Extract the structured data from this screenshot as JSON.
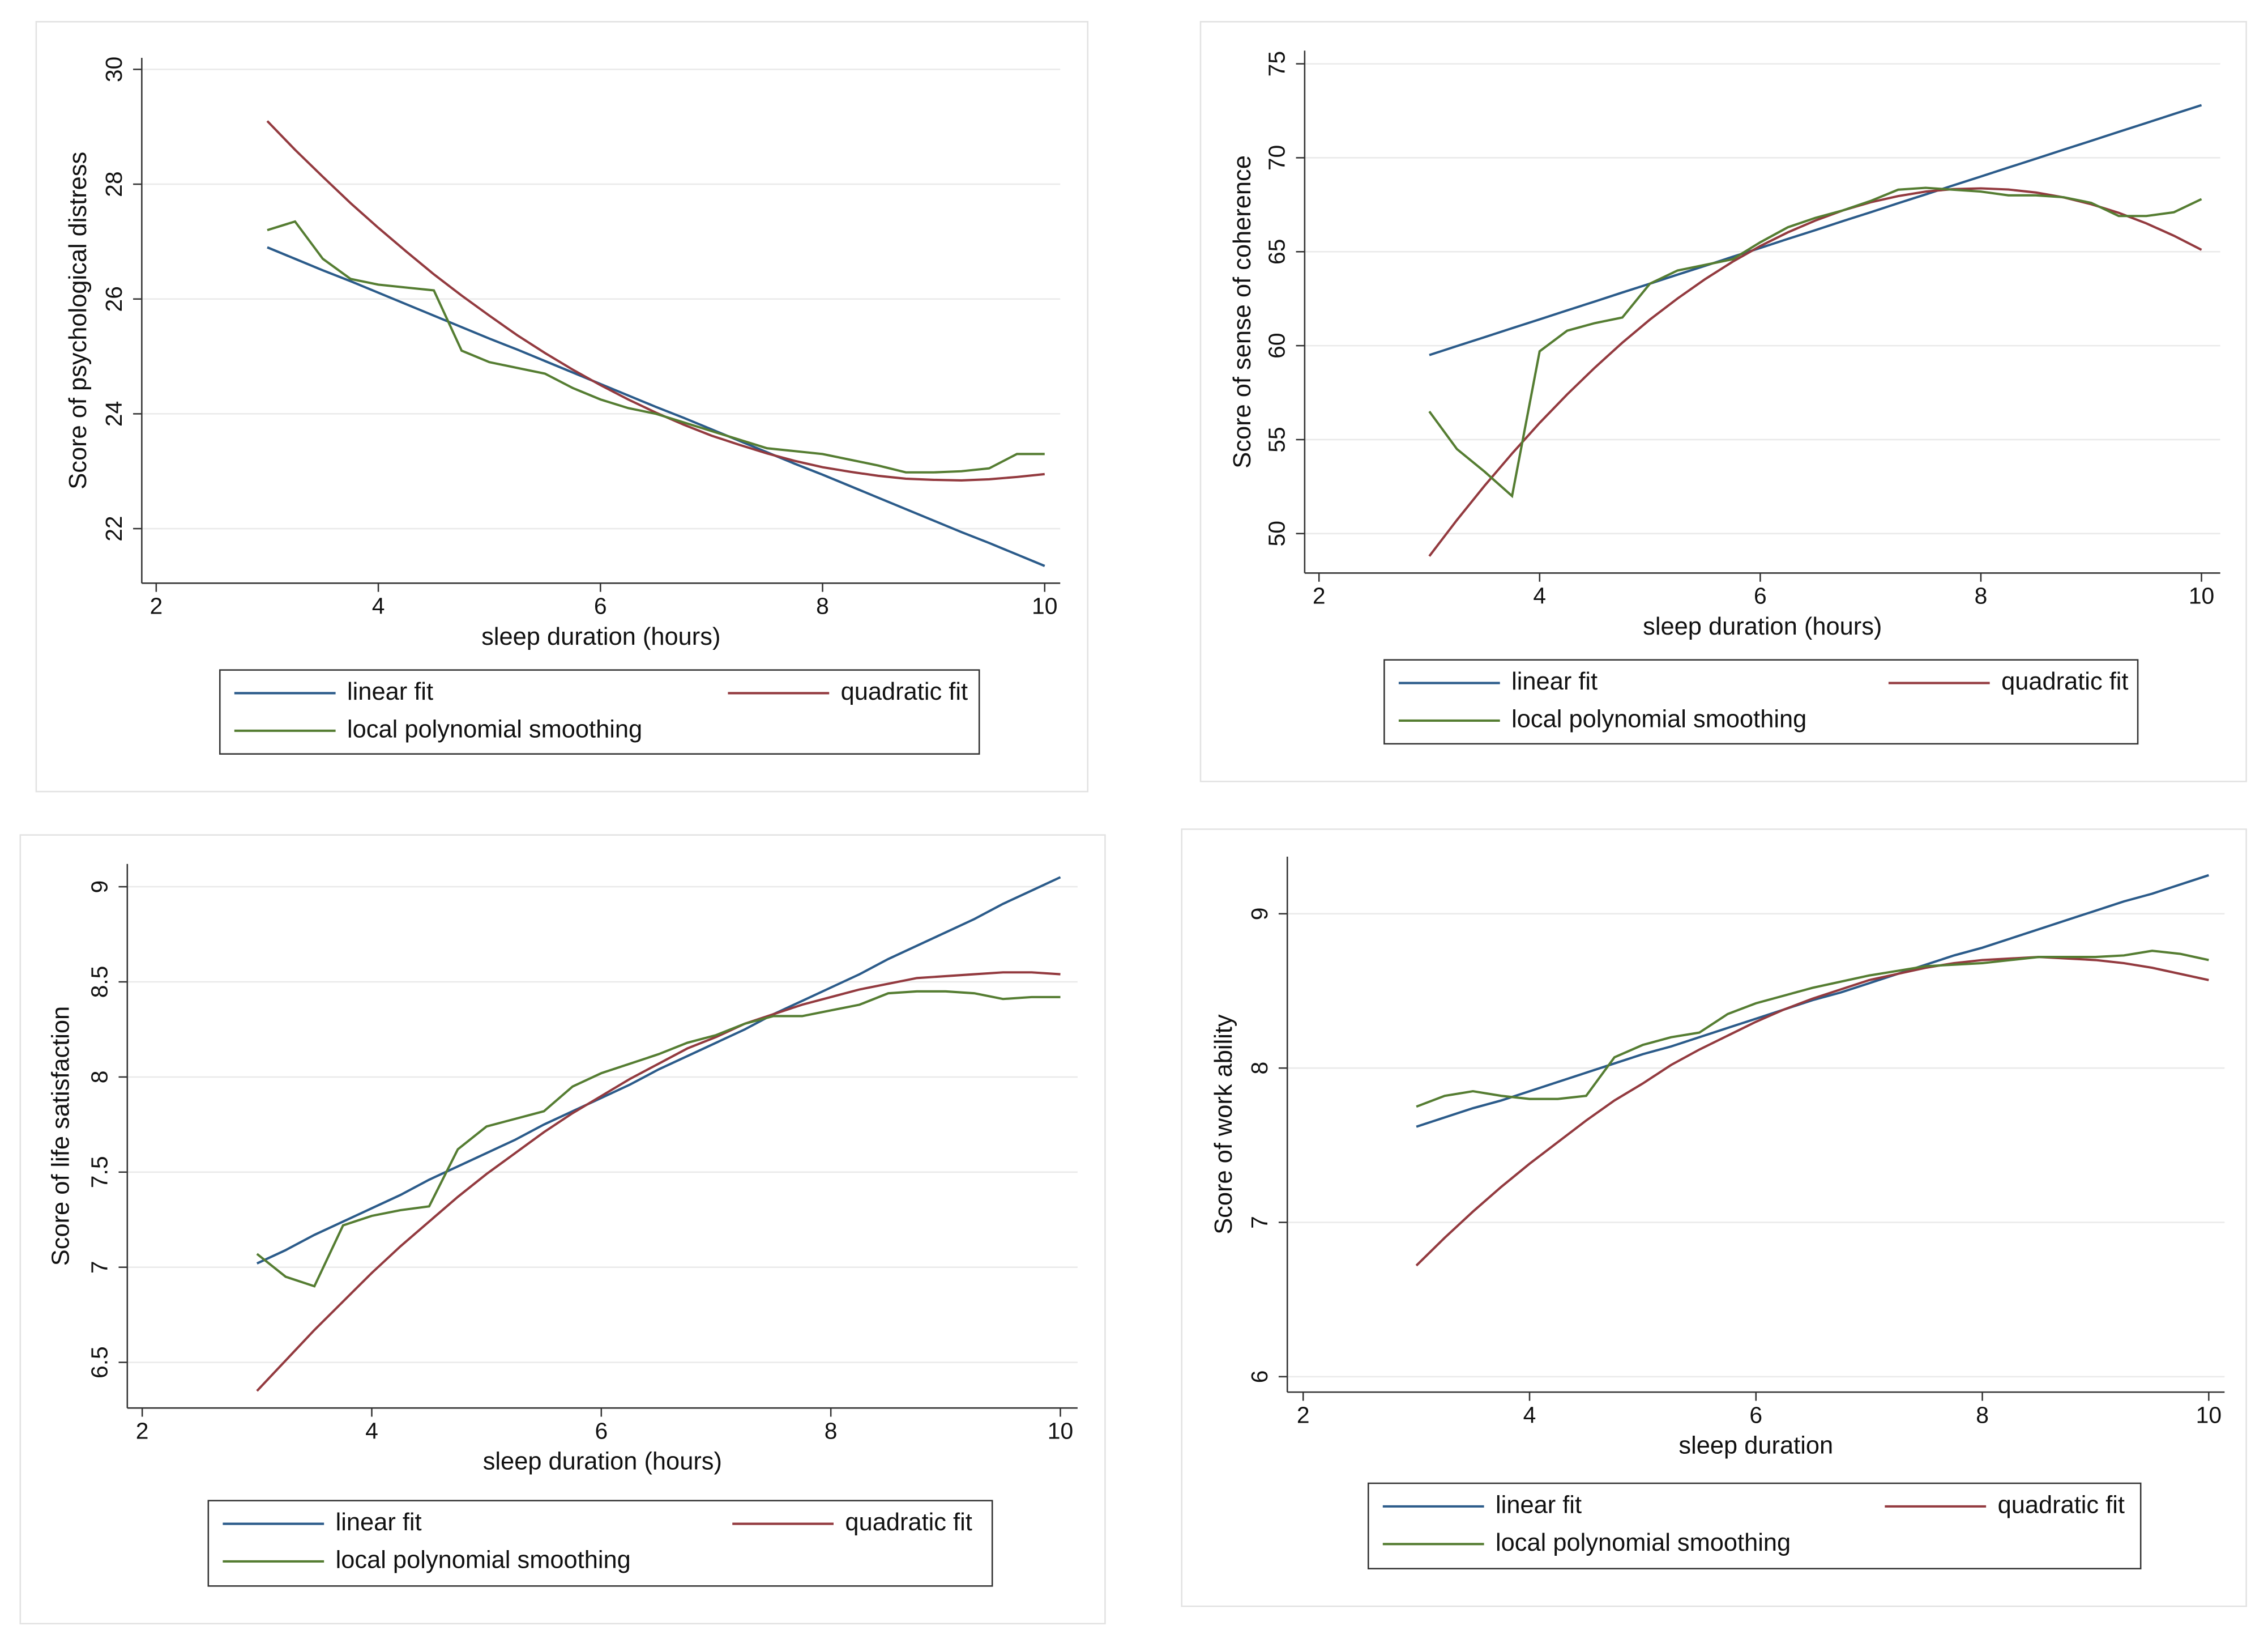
{
  "chart_data": [
    {
      "type": "line",
      "xlabel": "sleep duration (hours)",
      "ylabel": "Score of psychological distress",
      "x": [
        3,
        3.25,
        3.5,
        3.75,
        4,
        4.25,
        4.5,
        4.75,
        5,
        5.25,
        5.5,
        5.75,
        6,
        6.25,
        6.5,
        6.75,
        7,
        7.25,
        7.5,
        7.75,
        8,
        8.25,
        8.5,
        8.75,
        9,
        9.25,
        9.5,
        9.75,
        10
      ],
      "series": [
        {
          "name": "linear fit",
          "color": "#2b5b8a",
          "values": [
            26.9,
            26.7,
            26.5,
            26.31,
            26.11,
            25.91,
            25.71,
            25.51,
            25.31,
            25.12,
            24.92,
            24.72,
            24.52,
            24.32,
            24.12,
            23.93,
            23.73,
            23.53,
            23.33,
            23.13,
            22.94,
            22.74,
            22.54,
            22.34,
            22.14,
            21.94,
            21.75,
            21.55,
            21.35
          ]
        },
        {
          "name": "quadratic fit",
          "color": "#933a3f",
          "values": [
            29.1,
            28.6,
            28.13,
            27.67,
            27.24,
            26.83,
            26.43,
            26.06,
            25.71,
            25.37,
            25.06,
            24.77,
            24.5,
            24.25,
            24.02,
            23.81,
            23.62,
            23.46,
            23.31,
            23.18,
            23.07,
            22.99,
            22.92,
            22.87,
            22.85,
            22.84,
            22.86,
            22.9,
            22.95
          ]
        },
        {
          "name": "local polynomial smoothing",
          "color": "#557d32",
          "values": [
            27.2,
            27.35,
            26.7,
            26.35,
            26.25,
            26.2,
            26.15,
            25.1,
            24.9,
            24.8,
            24.7,
            24.45,
            24.25,
            24.1,
            24.0,
            23.85,
            23.7,
            23.55,
            23.4,
            23.35,
            23.3,
            23.2,
            23.1,
            22.98,
            22.98,
            23.0,
            23.05,
            23.3,
            23.3
          ]
        }
      ],
      "xlim": [
        1.87,
        10.14
      ],
      "ylim": [
        21.05,
        30.2
      ],
      "xticks": [
        2,
        4,
        6,
        8,
        10
      ],
      "yticks": [
        22,
        24,
        26,
        28,
        30
      ],
      "grid": true,
      "legend": "bottom"
    },
    {
      "type": "line",
      "xlabel": "sleep duration (hours)",
      "ylabel": "Score of sense of coherence",
      "x": [
        3,
        3.25,
        3.5,
        3.75,
        4,
        4.25,
        4.5,
        4.75,
        5,
        5.25,
        5.5,
        5.75,
        6,
        6.25,
        6.5,
        6.75,
        7,
        7.25,
        7.5,
        7.75,
        8,
        8.25,
        8.5,
        8.75,
        9,
        9.25,
        9.5,
        9.75,
        10
      ],
      "series": [
        {
          "name": "linear fit",
          "color": "#2b5b8a",
          "values": [
            59.5,
            59.98,
            60.45,
            60.93,
            61.4,
            61.88,
            62.35,
            62.83,
            63.3,
            63.78,
            64.25,
            64.73,
            65.2,
            65.68,
            66.15,
            66.63,
            67.1,
            67.58,
            68.05,
            68.53,
            69.0,
            69.48,
            69.95,
            70.43,
            70.9,
            71.38,
            71.85,
            72.33,
            72.8
          ]
        },
        {
          "name": "quadratic fit",
          "color": "#933a3f",
          "values": [
            48.8,
            50.72,
            52.54,
            54.26,
            55.89,
            57.41,
            58.83,
            60.16,
            61.39,
            62.51,
            63.54,
            64.47,
            65.3,
            66.03,
            66.66,
            67.2,
            67.63,
            67.96,
            68.2,
            68.33,
            68.37,
            68.31,
            68.15,
            67.89,
            67.53,
            67.07,
            66.51,
            65.85,
            65.1
          ]
        },
        {
          "name": "local polynomial smoothing",
          "color": "#557d32",
          "values": [
            56.5,
            54.5,
            53.3,
            52.0,
            59.7,
            60.8,
            61.2,
            61.5,
            63.3,
            64.0,
            64.3,
            64.6,
            65.5,
            66.3,
            66.8,
            67.2,
            67.7,
            68.3,
            68.4,
            68.3,
            68.2,
            68.0,
            68.0,
            67.9,
            67.6,
            66.9,
            66.9,
            67.1,
            67.8
          ]
        }
      ],
      "xlim": [
        1.87,
        10.17
      ],
      "ylim": [
        47.9,
        75.7
      ],
      "xticks": [
        2,
        4,
        6,
        8,
        10
      ],
      "yticks": [
        50,
        55,
        60,
        65,
        70,
        75
      ],
      "grid": true,
      "legend": "bottom"
    },
    {
      "type": "line",
      "xlabel": "sleep duration (hours)",
      "ylabel": "Score of life satisfaction",
      "x": [
        3,
        3.25,
        3.5,
        3.75,
        4,
        4.25,
        4.5,
        4.75,
        5,
        5.25,
        5.5,
        5.75,
        6,
        6.25,
        6.5,
        6.75,
        7,
        7.25,
        7.5,
        7.75,
        8,
        8.25,
        8.5,
        8.75,
        9,
        9.25,
        9.5,
        9.75,
        10
      ],
      "series": [
        {
          "name": "linear fit",
          "color": "#2b5b8a",
          "values": [
            7.02,
            7.09,
            7.17,
            7.24,
            7.31,
            7.38,
            7.46,
            7.53,
            7.6,
            7.67,
            7.75,
            7.82,
            7.89,
            7.96,
            8.04,
            8.11,
            8.18,
            8.25,
            8.33,
            8.4,
            8.47,
            8.54,
            8.62,
            8.69,
            8.76,
            8.83,
            8.91,
            8.98,
            9.05
          ]
        },
        {
          "name": "quadratic fit",
          "color": "#933a3f",
          "values": [
            6.35,
            6.51,
            6.67,
            6.82,
            6.97,
            7.11,
            7.24,
            7.37,
            7.49,
            7.6,
            7.71,
            7.81,
            7.9,
            7.99,
            8.07,
            8.15,
            8.21,
            8.28,
            8.33,
            8.38,
            8.42,
            8.46,
            8.49,
            8.52,
            8.53,
            8.54,
            8.55,
            8.55,
            8.54
          ]
        },
        {
          "name": "local polynomial smoothing",
          "color": "#557d32",
          "values": [
            7.07,
            6.95,
            6.9,
            7.22,
            7.27,
            7.3,
            7.32,
            7.62,
            7.74,
            7.78,
            7.82,
            7.95,
            8.02,
            8.07,
            8.12,
            8.18,
            8.22,
            8.28,
            8.32,
            8.32,
            8.35,
            8.38,
            8.44,
            8.45,
            8.45,
            8.44,
            8.41,
            8.42,
            8.42
          ]
        }
      ],
      "xlim": [
        1.87,
        10.15
      ],
      "ylim": [
        6.26,
        9.12
      ],
      "xticks": [
        2,
        4,
        6,
        8,
        10
      ],
      "yticks": [
        6.5,
        7,
        7.5,
        8,
        8.5,
        9
      ],
      "grid": true,
      "legend": "bottom"
    },
    {
      "type": "line",
      "xlabel": "sleep duration",
      "ylabel": "Score of work ability",
      "x": [
        3,
        3.25,
        3.5,
        3.75,
        4,
        4.25,
        4.5,
        4.75,
        5,
        5.25,
        5.5,
        5.75,
        6,
        6.25,
        6.5,
        6.75,
        7,
        7.25,
        7.5,
        7.75,
        8,
        8.25,
        8.5,
        8.75,
        9,
        9.25,
        9.5,
        9.75,
        10
      ],
      "series": [
        {
          "name": "linear fit",
          "color": "#2b5b8a",
          "values": [
            7.62,
            7.68,
            7.74,
            7.79,
            7.85,
            7.91,
            7.97,
            8.03,
            8.09,
            8.14,
            8.2,
            8.26,
            8.32,
            8.38,
            8.44,
            8.49,
            8.55,
            8.61,
            8.67,
            8.73,
            8.78,
            8.84,
            8.9,
            8.96,
            9.02,
            9.08,
            9.13,
            9.19,
            9.25
          ]
        },
        {
          "name": "quadratic fit",
          "color": "#933a3f",
          "values": [
            6.72,
            6.9,
            7.07,
            7.23,
            7.38,
            7.52,
            7.66,
            7.79,
            7.9,
            8.02,
            8.12,
            8.21,
            8.3,
            8.38,
            8.45,
            8.51,
            8.57,
            8.61,
            8.65,
            8.68,
            8.7,
            8.71,
            8.72,
            8.71,
            8.7,
            8.68,
            8.65,
            8.61,
            8.57
          ]
        },
        {
          "name": "local polynomial smoothing",
          "color": "#557d32",
          "values": [
            7.75,
            7.82,
            7.85,
            7.82,
            7.8,
            7.8,
            7.82,
            8.07,
            8.15,
            8.2,
            8.23,
            8.35,
            8.42,
            8.47,
            8.52,
            8.56,
            8.6,
            8.63,
            8.66,
            8.67,
            8.68,
            8.7,
            8.72,
            8.72,
            8.72,
            8.73,
            8.76,
            8.74,
            8.7
          ]
        }
      ],
      "xlim": [
        1.86,
        10.14
      ],
      "ylim": [
        5.9,
        9.37
      ],
      "xticks": [
        2,
        4,
        6,
        8,
        10
      ],
      "yticks": [
        6,
        7,
        8,
        9
      ],
      "grid": true,
      "legend": "bottom"
    }
  ]
}
